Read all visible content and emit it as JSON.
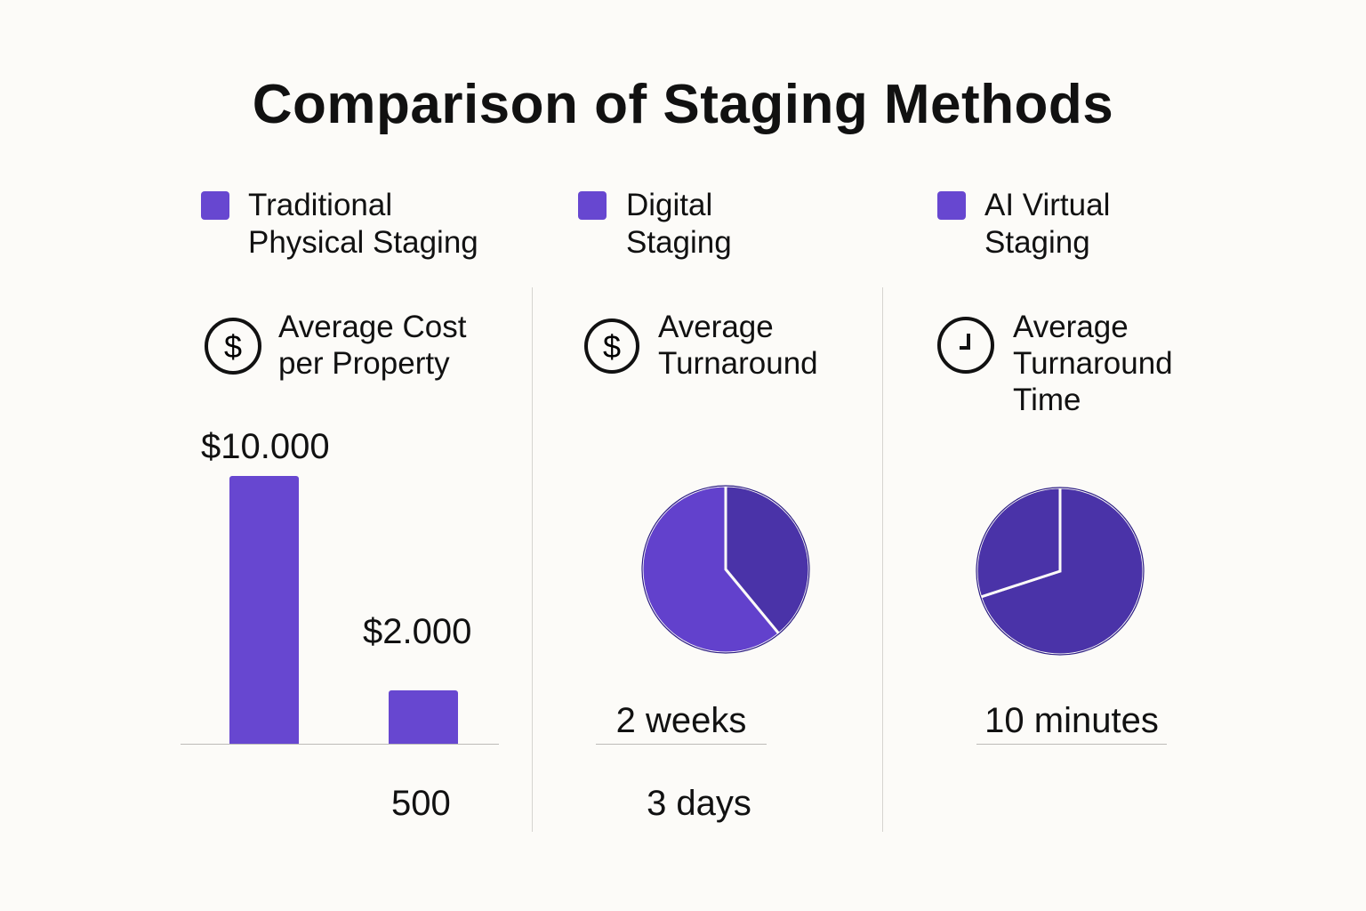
{
  "title": "Comparison of Staging Methods",
  "colors": {
    "bar": "#6747d0",
    "pie_light": "#6241cc",
    "pie_dark": "#4a33a8",
    "background": "#fcfbf8"
  },
  "legend": [
    {
      "label_line1": "Traditional",
      "label_line2": "Physical Staging"
    },
    {
      "label_line1": "Digital",
      "label_line2": "Staging"
    },
    {
      "label_line1": "AI Virtual",
      "label_line2": "Staging"
    }
  ],
  "panels": [
    {
      "icon": "dollar-icon",
      "heading_lines": [
        "Average Cost",
        "per Property"
      ]
    },
    {
      "icon": "dollar-icon",
      "heading_lines": [
        "Average",
        "Turnaround"
      ]
    },
    {
      "icon": "clock-icon",
      "heading_lines": [
        "Average",
        "Turnaround",
        "Time"
      ]
    }
  ],
  "chart_data": [
    {
      "type": "bar",
      "title": "Average Cost per Property",
      "categories": [
        "Traditional Physical Staging",
        "Digital Staging"
      ],
      "values": [
        10000,
        2000
      ],
      "value_labels": [
        "$10.000",
        "$2.000"
      ],
      "extra_label": "500"
    },
    {
      "type": "pie",
      "title": "Average Turnaround",
      "slices": [
        {
          "value": 39,
          "color": "#4a33a8"
        },
        {
          "value": 61,
          "color": "#6241cc"
        }
      ],
      "labels": [
        "2 weeks",
        "3 days"
      ]
    },
    {
      "type": "pie",
      "title": "Average Turnaround Time",
      "slices": [
        {
          "value": 70,
          "color": "#4a33a8"
        },
        {
          "value": 30,
          "color": "#4a33a8"
        }
      ],
      "labels": [
        "10 minutes"
      ]
    }
  ]
}
